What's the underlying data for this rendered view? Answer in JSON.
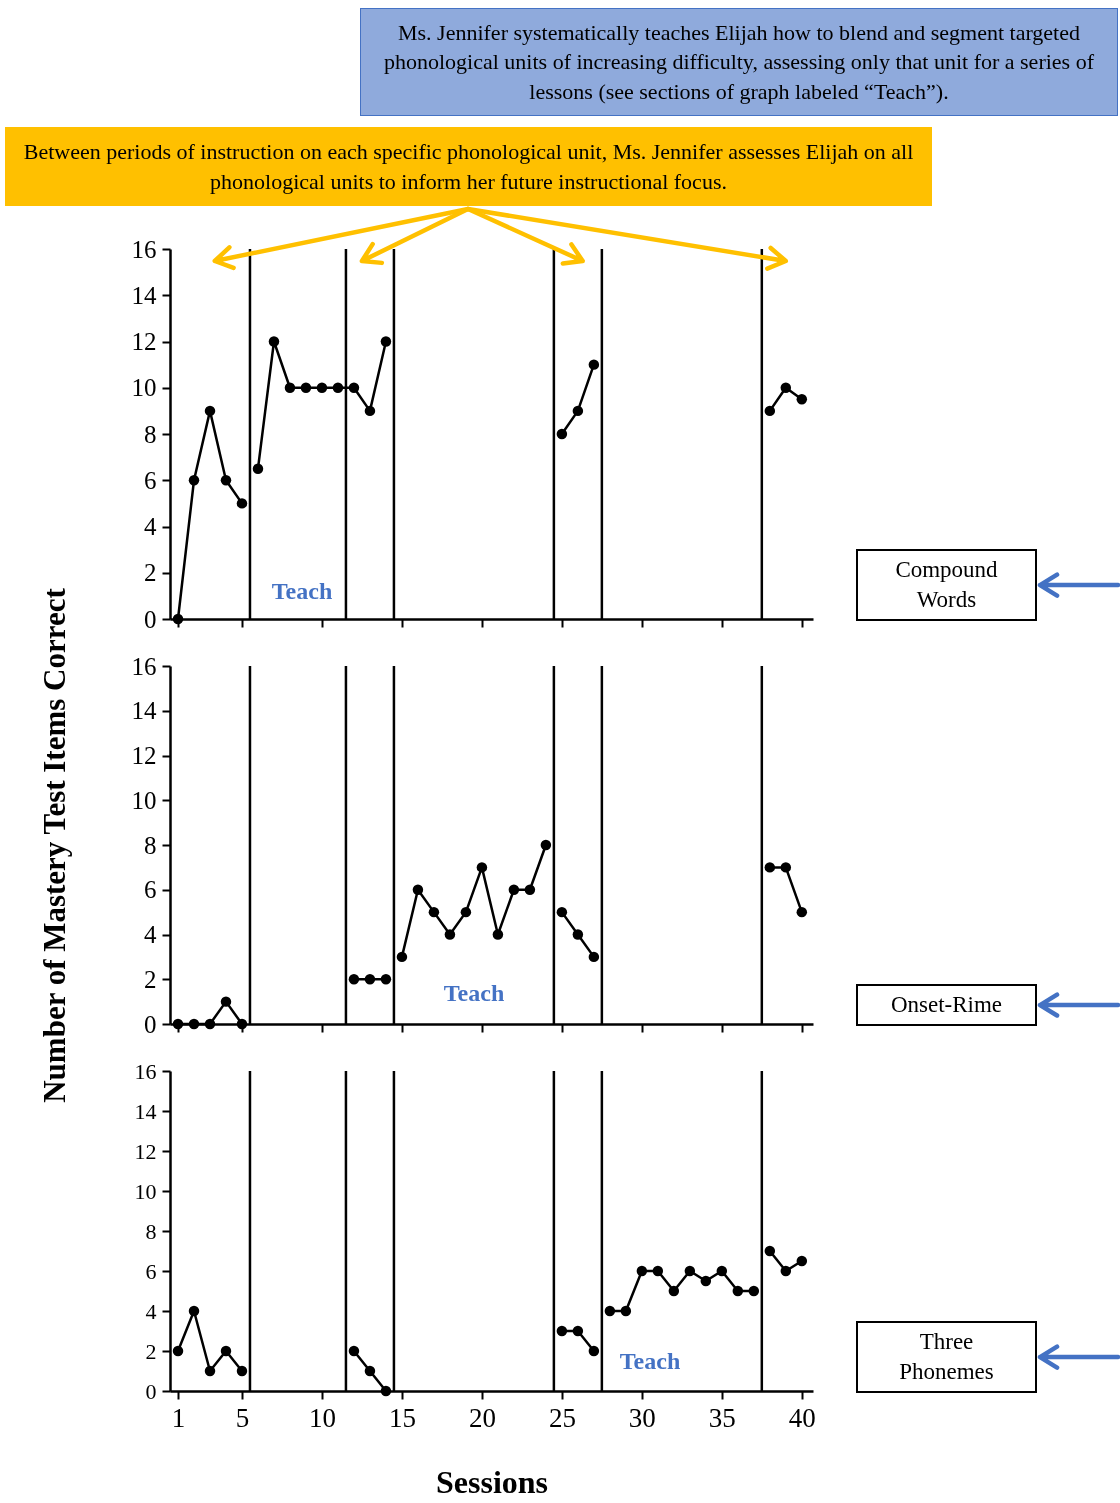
{
  "chart_data": [
    {
      "type": "line",
      "annotations": [
        "Ms. Jennifer systematically teaches Elijah how to blend and segment targeted phonological units of increasing difficulty, assessing only that unit for a series of lessons (see sections of graph labeled “Teach”).",
        "Between periods of instruction on each specific phonological unit, Ms. Jennifer assesses Elijah on all phonological units to inform her future instructional focus.",
        "Teach",
        "Compound Words"
      ],
      "series": [
        {
          "color": "#000000",
          "x": [
            1,
            2,
            3,
            4,
            5
          ],
          "values": [
            0,
            6,
            9,
            6,
            5
          ]
        },
        {
          "color": "#000000",
          "x": [
            6,
            7,
            8,
            9,
            10,
            11,
            12,
            13,
            14
          ],
          "values": [
            6.5,
            12,
            10,
            10,
            10,
            10,
            10,
            9,
            12
          ]
        },
        {
          "color": "#000000",
          "x": [
            25,
            26,
            27
          ],
          "values": [
            8,
            9,
            11
          ]
        },
        {
          "color": "#000000",
          "x": [
            38,
            39,
            40
          ],
          "values": [
            9,
            10,
            9.5
          ]
        }
      ],
      "xlim": [
        0.5,
        40.7
      ],
      "xticks": [
        1,
        5,
        10,
        15,
        20,
        25,
        30,
        35,
        40
      ],
      "ylim": [
        0,
        16
      ],
      "yticks": [
        0,
        2,
        4,
        6,
        8,
        10,
        12,
        14,
        16
      ],
      "tick_labels": "y",
      "ref_lines": [
        {
          "axis": "x",
          "value": 5.5,
          "label": null
        },
        {
          "axis": "x",
          "value": 11.5,
          "label": null
        },
        {
          "axis": "x",
          "value": 14.5,
          "label": null
        },
        {
          "axis": "x",
          "value": 24.5,
          "label": null
        },
        {
          "axis": "x",
          "value": 27.5,
          "label": null
        },
        {
          "axis": "x",
          "value": 37.5,
          "label": null
        }
      ],
      "grid": false,
      "marker": "circle",
      "line_style": "solid"
    },
    {
      "type": "line",
      "ylabel": "Number of Mastery Test Items Correct",
      "annotations": [
        "Teach",
        "Onset-Rime"
      ],
      "series": [
        {
          "color": "#000000",
          "x": [
            1,
            2,
            3,
            4,
            5
          ],
          "values": [
            0,
            0,
            0,
            1,
            0
          ]
        },
        {
          "color": "#000000",
          "x": [
            12,
            13,
            14
          ],
          "values": [
            2,
            2,
            2
          ]
        },
        {
          "color": "#000000",
          "x": [
            15,
            16,
            17,
            18,
            19,
            20,
            21,
            22,
            23,
            24
          ],
          "values": [
            3,
            6,
            5,
            4,
            5,
            7,
            4,
            6,
            6,
            8
          ]
        },
        {
          "color": "#000000",
          "x": [
            25,
            26,
            27
          ],
          "values": [
            5,
            4,
            3
          ]
        },
        {
          "color": "#000000",
          "x": [
            38,
            39,
            40
          ],
          "values": [
            7,
            7,
            5
          ]
        }
      ],
      "xlim": [
        0.5,
        40.7
      ],
      "xticks": [
        1,
        5,
        10,
        15,
        20,
        25,
        30,
        35,
        40
      ],
      "ylim": [
        0,
        16
      ],
      "yticks": [
        0,
        2,
        4,
        6,
        8,
        10,
        12,
        14,
        16
      ],
      "tick_labels": "y",
      "ref_lines": [
        {
          "axis": "x",
          "value": 5.5,
          "label": null
        },
        {
          "axis": "x",
          "value": 11.5,
          "label": null
        },
        {
          "axis": "x",
          "value": 14.5,
          "label": null
        },
        {
          "axis": "x",
          "value": 24.5,
          "label": null
        },
        {
          "axis": "x",
          "value": 27.5,
          "label": null
        },
        {
          "axis": "x",
          "value": 37.5,
          "label": null
        }
      ],
      "grid": false,
      "marker": "circle",
      "line_style": "solid"
    },
    {
      "type": "line",
      "xlabel": "Sessions",
      "annotations": [
        "Teach",
        "Three Phonemes"
      ],
      "series": [
        {
          "color": "#000000",
          "x": [
            1,
            2,
            3,
            4,
            5
          ],
          "values": [
            2,
            4,
            1,
            2,
            1
          ]
        },
        {
          "color": "#000000",
          "x": [
            12,
            13,
            14
          ],
          "values": [
            2,
            1,
            0
          ]
        },
        {
          "color": "#000000",
          "x": [
            25,
            26,
            27
          ],
          "values": [
            3,
            3,
            2
          ]
        },
        {
          "color": "#000000",
          "x": [
            28,
            29,
            30,
            31,
            32,
            33,
            34,
            35,
            36,
            37
          ],
          "values": [
            4,
            4,
            6,
            6,
            5,
            6,
            5.5,
            6,
            5,
            5
          ]
        },
        {
          "color": "#000000",
          "x": [
            38,
            39,
            40
          ],
          "values": [
            7,
            6,
            6.5
          ]
        }
      ],
      "xlim": [
        0.5,
        40.7
      ],
      "xticks": [
        1,
        5,
        10,
        15,
        20,
        25,
        30,
        35,
        40
      ],
      "ylim": [
        0,
        16
      ],
      "yticks": [
        0,
        2,
        4,
        6,
        8,
        10,
        12,
        14,
        16
      ],
      "ref_lines": [
        {
          "axis": "x",
          "value": 5.5,
          "label": null
        },
        {
          "axis": "x",
          "value": 11.5,
          "label": null
        },
        {
          "axis": "x",
          "value": 14.5,
          "label": null
        },
        {
          "axis": "x",
          "value": 24.5,
          "label": null
        },
        {
          "axis": "x",
          "value": 27.5,
          "label": null
        },
        {
          "axis": "x",
          "value": 37.5,
          "label": null
        }
      ],
      "grid": false,
      "marker": "circle",
      "line_style": "solid"
    }
  ]
}
